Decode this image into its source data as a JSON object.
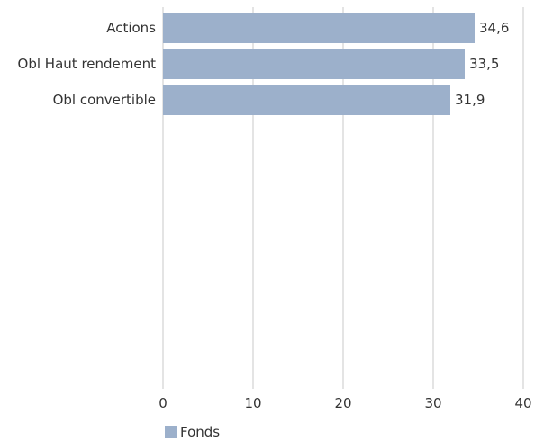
{
  "chart_data": {
    "type": "bar",
    "orientation": "horizontal",
    "categories": [
      "Actions",
      "Obl Haut rendement",
      "Obl convertible"
    ],
    "series": [
      {
        "name": "Fonds",
        "values": [
          34.6,
          33.5,
          31.9
        ],
        "value_labels": [
          "34,6",
          "33,5",
          "31,9"
        ]
      }
    ],
    "xlim": [
      0,
      40
    ],
    "xticks": [
      0,
      10,
      20,
      30,
      40
    ],
    "xtick_labels": [
      "0",
      "10",
      "20",
      "30",
      "40"
    ],
    "grid": "vertical",
    "legend_position": "bottom-left",
    "colors": {
      "bar": "#9cb0cb",
      "grid": "#c8c8c8",
      "text": "#333333"
    }
  }
}
